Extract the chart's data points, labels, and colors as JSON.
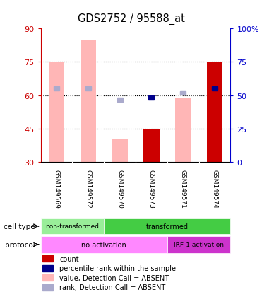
{
  "title": "GDS2752 / 95588_at",
  "samples": [
    "GSM149569",
    "GSM149572",
    "GSM149570",
    "GSM149573",
    "GSM149571",
    "GSM149574"
  ],
  "ylim": [
    30,
    90
  ],
  "ylim_right": [
    0,
    100
  ],
  "yticks_left": [
    30,
    45,
    60,
    75,
    90
  ],
  "yticks_right": [
    0,
    25,
    50,
    75,
    100
  ],
  "hlines": [
    45,
    60,
    75
  ],
  "bar_bottom": 30,
  "pink_bars_top": [
    75,
    85,
    40,
    45,
    59,
    75
  ],
  "pink_bars_absent": [
    true,
    true,
    true,
    false,
    true,
    false
  ],
  "blue_sq_y": [
    63,
    63,
    58,
    59,
    61,
    63
  ],
  "blue_sq_absent": [
    true,
    true,
    true,
    false,
    true,
    false
  ],
  "pink_absent_color": "#ffb6b6",
  "pink_present_color": "#cc0000",
  "blue_absent_color": "#aaaacc",
  "blue_present_color": "#00008b",
  "left_axis_color": "#cc0000",
  "right_axis_color": "#0000cc",
  "bg_color": "#ffffff",
  "sample_bg_color": "#cccccc",
  "nt_color": "#99ee99",
  "t_color": "#44cc44",
  "no_act_color": "#ff88ff",
  "irf_color": "#cc33cc",
  "legend_items": [
    {
      "color": "#cc0000",
      "label": "count"
    },
    {
      "color": "#00008b",
      "label": "percentile rank within the sample"
    },
    {
      "color": "#ffb6b6",
      "label": "value, Detection Call = ABSENT"
    },
    {
      "color": "#aaaacc",
      "label": "rank, Detection Call = ABSENT"
    }
  ]
}
